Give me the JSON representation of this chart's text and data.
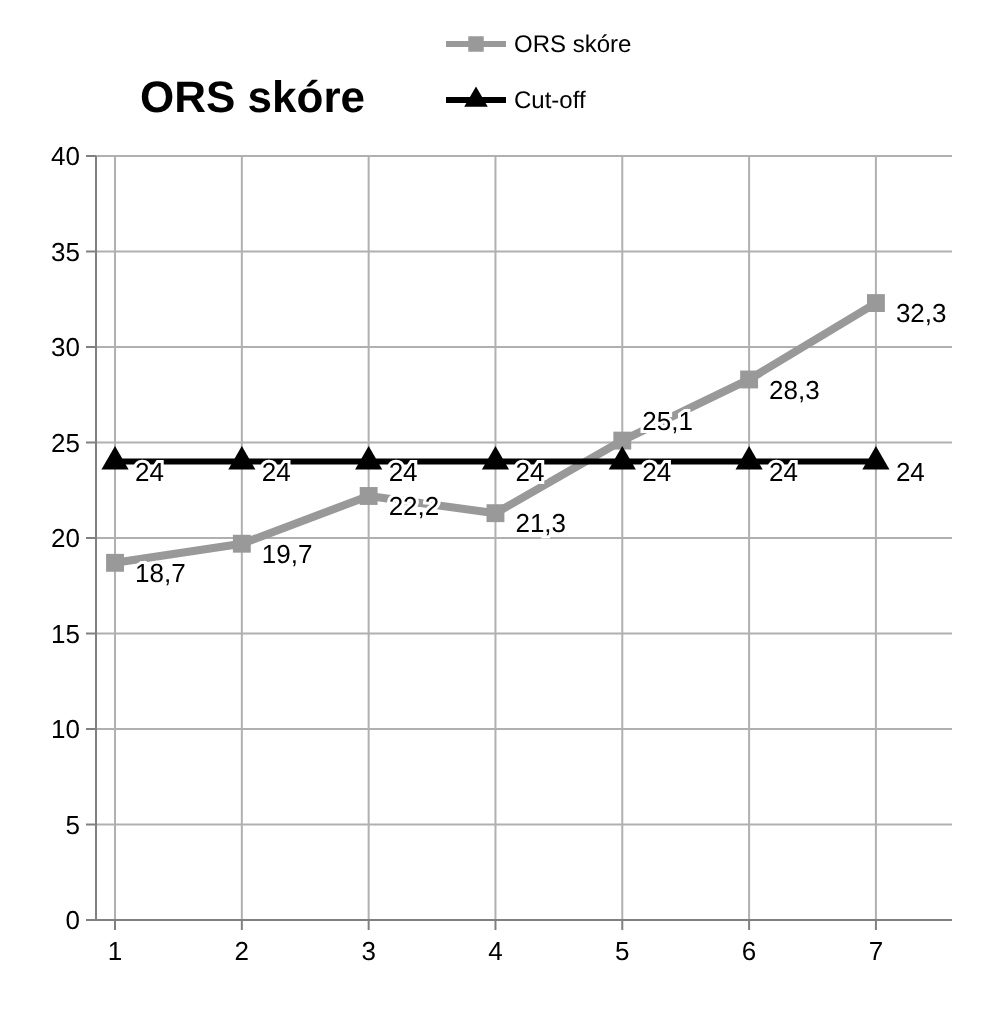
{
  "chart_data": {
    "type": "line",
    "title": "ORS skóre",
    "x": [
      1,
      2,
      3,
      4,
      5,
      6,
      7
    ],
    "xlim": [
      0.85,
      7.6
    ],
    "xticks": [
      1,
      2,
      3,
      4,
      5,
      6,
      7
    ],
    "ylim": [
      0,
      40
    ],
    "yticks": [
      0,
      5,
      10,
      15,
      20,
      25,
      30,
      35,
      40
    ],
    "grid": true,
    "legend": "top",
    "series": [
      {
        "name": "ORS skóre",
        "color": "#999999",
        "marker": "square",
        "values": [
          18.7,
          19.7,
          22.2,
          21.3,
          25.1,
          28.3,
          32.3
        ],
        "value_labels": [
          "18,7",
          "19,7",
          "22,2",
          "21,3",
          "25,1",
          "28,3",
          "32,3"
        ]
      },
      {
        "name": "Cut-off",
        "color": "#000000",
        "marker": "triangle",
        "values": [
          24,
          24,
          24,
          24,
          24,
          24,
          24
        ],
        "value_labels": [
          "24",
          "24",
          "24",
          "24",
          "24",
          "24",
          "24"
        ]
      }
    ]
  }
}
